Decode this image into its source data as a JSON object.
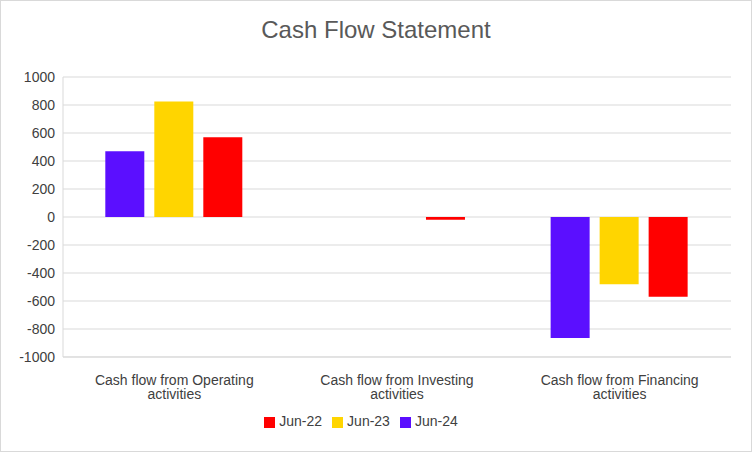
{
  "chart_data": {
    "type": "bar",
    "title": "Cash Flow Statement",
    "categories": [
      "Cash flow from Operating activities",
      "Cash flow from Investing activities",
      "Cash flow from Financing activities"
    ],
    "series": [
      {
        "name": "Jun-24",
        "color": "#5b0fff",
        "values": [
          470,
          0,
          -865
        ]
      },
      {
        "name": "Jun-23",
        "color": "#ffd500",
        "values": [
          825,
          0,
          -480
        ]
      },
      {
        "name": "Jun-22",
        "color": "#ff0000",
        "values": [
          570,
          -20,
          -570
        ]
      }
    ],
    "ylim": [
      -1000,
      1000
    ],
    "yticks": [
      -1000,
      -800,
      -600,
      -400,
      -200,
      0,
      200,
      400,
      600,
      800,
      1000
    ],
    "grid": true,
    "legend": "bottom"
  }
}
